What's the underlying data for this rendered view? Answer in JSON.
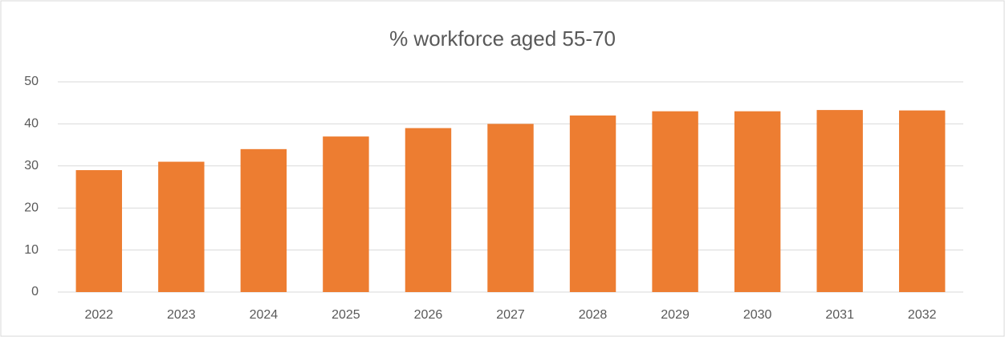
{
  "chart_data": {
    "type": "bar",
    "title": "% workforce aged 55-70",
    "categories": [
      "2022",
      "2023",
      "2024",
      "2025",
      "2026",
      "2027",
      "2028",
      "2029",
      "2030",
      "2031",
      "2032"
    ],
    "values": [
      29,
      31,
      34,
      37,
      39,
      40,
      42,
      43,
      43,
      43.3,
      43.2
    ],
    "color": "#ed7d31",
    "ylim": [
      0,
      50
    ],
    "yticks": [
      0,
      10,
      20,
      30,
      40,
      50
    ],
    "grid": true
  }
}
